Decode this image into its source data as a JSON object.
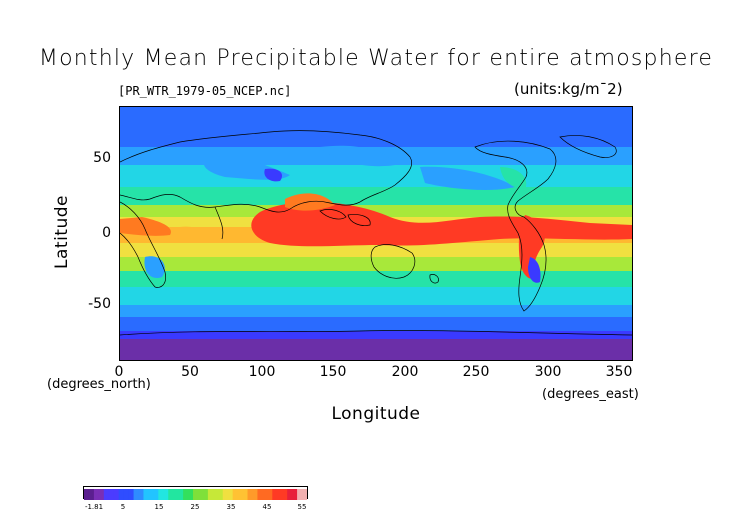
{
  "title": "Monthly Mean Precipitable Water for entire atmosphere",
  "source_label": "[PR_WTR_1979-05_NCEP.nc]",
  "units_label": "(units:kg/m¯2)",
  "axes": {
    "xlabel": "Longitude",
    "ylabel": "Latitude",
    "x_unit_label": "(degrees_east)",
    "y_unit_label": "(degrees_north)",
    "x_ticks": [
      "0",
      "50",
      "100",
      "150",
      "200",
      "250",
      "300",
      "350"
    ],
    "y_ticks": [
      "50",
      "0",
      "-50"
    ]
  },
  "map": {
    "lon_range": [
      0,
      360
    ],
    "lat_range": [
      -90,
      90
    ],
    "content": "filled-contour precipitable water field with coastlines",
    "colors": [
      "#6b2fa8",
      "#3a3aff",
      "#2a6bff",
      "#2aa0ff",
      "#22d6e6",
      "#26e3a8",
      "#4fe04a",
      "#a8e83a",
      "#f0e040",
      "#ffb830",
      "#ff7a20",
      "#ff3a24"
    ]
  },
  "colorbar": {
    "min": -1.81,
    "max": 55,
    "labels": [
      "-1.81",
      "5",
      "15",
      "25",
      "35",
      "45",
      "55"
    ]
  }
}
